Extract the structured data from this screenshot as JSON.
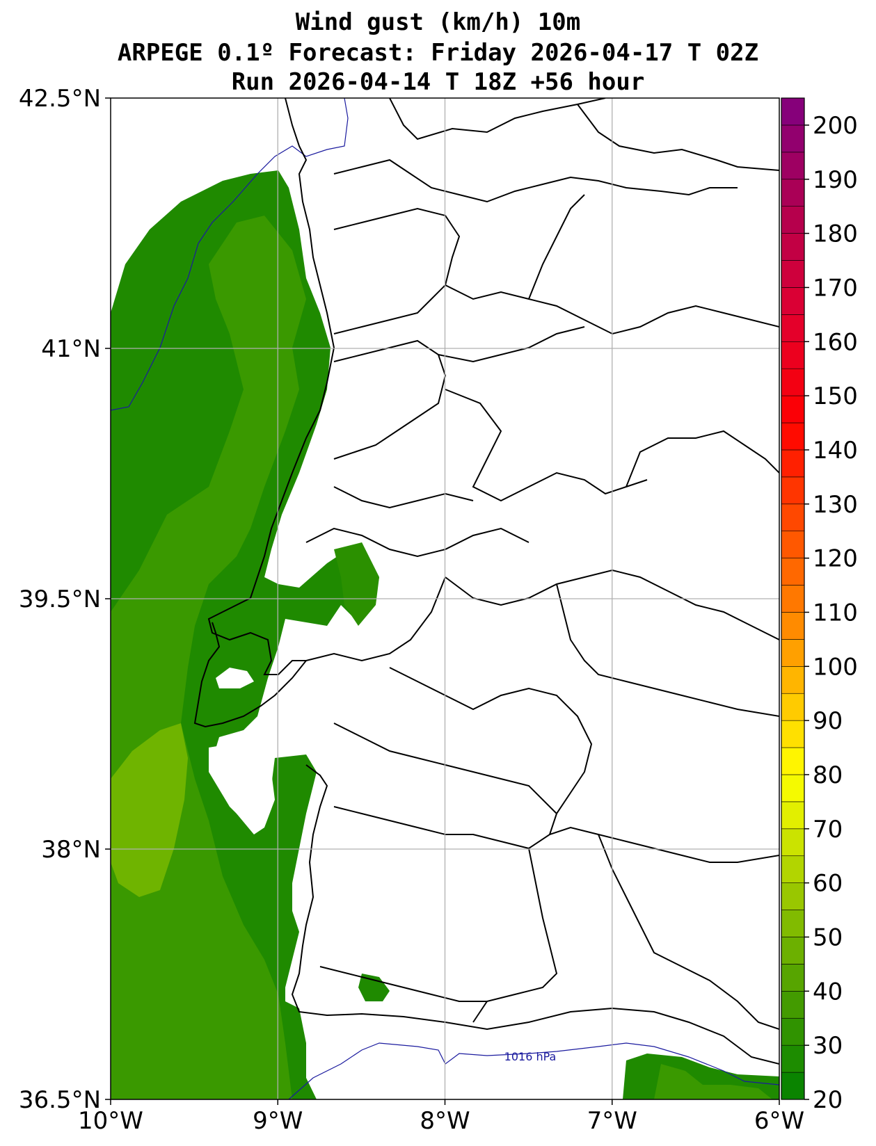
{
  "title": {
    "line1": "Wind gust (km/h) 10m",
    "line2": "ARPEGE 0.1º Forecast: Friday 2026-04-17 T 02Z",
    "line3": "Run 2026-04-14 T 18Z +56 hour"
  },
  "map": {
    "lon_range": [
      -10,
      -6
    ],
    "lat_range": [
      36.5,
      42.5
    ],
    "lon_ticks": [
      {
        "value": -10,
        "label": "10°W"
      },
      {
        "value": -9,
        "label": "9°W"
      },
      {
        "value": -8,
        "label": "8°W"
      },
      {
        "value": -7,
        "label": "7°W"
      },
      {
        "value": -6,
        "label": "6°W"
      }
    ],
    "lat_ticks": [
      {
        "value": 42.5,
        "label": "42.5°N"
      },
      {
        "value": 41,
        "label": "41°N"
      },
      {
        "value": 39.5,
        "label": "39.5°N"
      },
      {
        "value": 38,
        "label": "38°N"
      },
      {
        "value": 36.5,
        "label": "36.5°N"
      }
    ],
    "isobar_label": "1016 hPa",
    "grid": true
  },
  "colorbar": {
    "min": 20,
    "max": 205,
    "step": 5,
    "labels": [
      "20",
      "30",
      "40",
      "50",
      "60",
      "70",
      "80",
      "90",
      "100",
      "110",
      "120",
      "130",
      "140",
      "150",
      "160",
      "170",
      "180",
      "190",
      "200"
    ],
    "label_values": [
      20,
      30,
      40,
      50,
      60,
      70,
      80,
      90,
      100,
      110,
      120,
      130,
      140,
      150,
      160,
      170,
      180,
      190,
      200
    ],
    "stops": [
      {
        "value": 20,
        "color": "#008000"
      },
      {
        "value": 40,
        "color": "#4c9f00"
      },
      {
        "value": 55,
        "color": "#8cc000"
      },
      {
        "value": 70,
        "color": "#d8ea00"
      },
      {
        "value": 80,
        "color": "#ffff00"
      },
      {
        "value": 95,
        "color": "#ffc000"
      },
      {
        "value": 110,
        "color": "#ff8000"
      },
      {
        "value": 130,
        "color": "#ff4000"
      },
      {
        "value": 145,
        "color": "#ff0000"
      },
      {
        "value": 165,
        "color": "#e00030"
      },
      {
        "value": 185,
        "color": "#b00050"
      },
      {
        "value": 205,
        "color": "#800080"
      }
    ]
  },
  "colors": {
    "isobar": "#1a1a9e",
    "coast": "#000000",
    "grid": "#b0b0b0"
  }
}
